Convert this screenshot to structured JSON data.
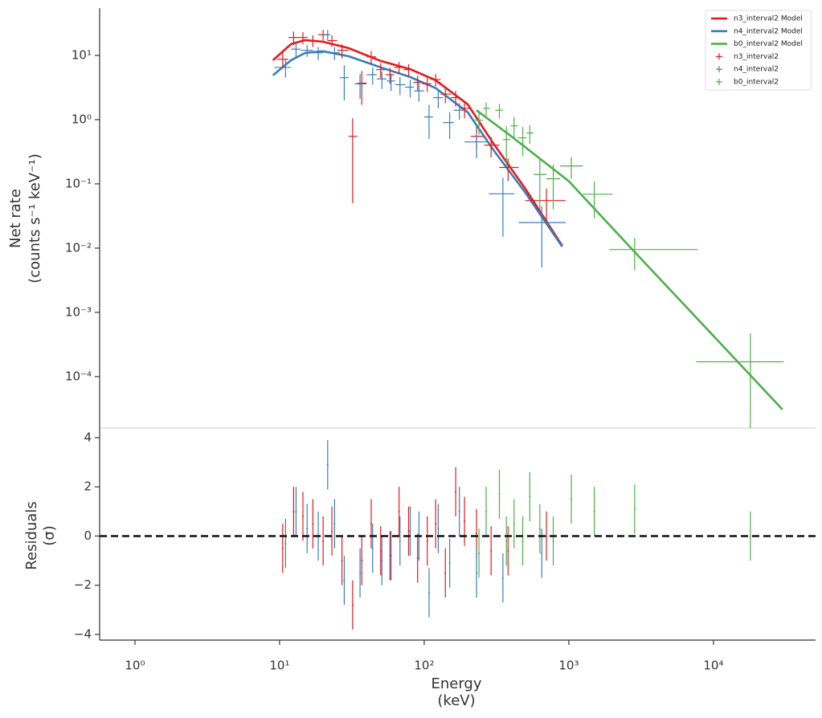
{
  "chart_data": [
    {
      "type": "spectrum",
      "ylabel": [
        "Net rate",
        "(counts s⁻¹ keV⁻¹)"
      ],
      "log_x": true,
      "log_y": true,
      "xlim": [
        0.57,
        50800
      ],
      "ylim": [
        1.58e-05,
        54.6
      ],
      "yticks": [
        {
          "value": 10,
          "label": "10¹"
        },
        {
          "value": 1,
          "label": "10⁰"
        },
        {
          "value": 0.1,
          "label": "10⁻¹"
        },
        {
          "value": 0.01,
          "label": "10⁻²"
        },
        {
          "value": 0.001,
          "label": "10⁻³"
        },
        {
          "value": 0.0001,
          "label": "10⁻⁴"
        }
      ],
      "legend": "upper right",
      "series": [
        {
          "name": "n3_interval2 Model",
          "kind": "model",
          "color": "#e41a1c",
          "x": [
            9,
            12,
            15,
            20,
            30,
            50,
            80,
            120,
            200,
            300,
            500,
            900
          ],
          "values": [
            8.4,
            15.0,
            17.3,
            16.3,
            13.0,
            8.2,
            6.1,
            4.1,
            1.73,
            0.43,
            0.084,
            0.0109
          ]
        },
        {
          "name": "n4_interval2 Model",
          "kind": "model",
          "color": "#377eb8",
          "x": [
            9,
            12,
            15,
            20,
            30,
            50,
            80,
            120,
            200,
            300,
            500,
            900
          ],
          "values": [
            4.9,
            8.4,
            10.9,
            11.6,
            9.7,
            6.5,
            4.6,
            3.1,
            1.3,
            0.34,
            0.073,
            0.0105
          ]
        },
        {
          "name": "b0_interval2 Model",
          "kind": "model",
          "color": "#4daf4a",
          "x": [
            230,
            400,
            1000,
            3000,
            10000,
            30000
          ],
          "values": [
            1.4,
            0.55,
            0.11,
            0.0077,
            0.00043,
            3.07e-05
          ]
        },
        {
          "name": "n3_interval2",
          "kind": "data",
          "color": "#e41a1c",
          "x": [
            10.5,
            12.5,
            14.5,
            17,
            20,
            23,
            27,
            32,
            37,
            43,
            50,
            58,
            67,
            78,
            90,
            105,
            120,
            140,
            165,
            190,
            230,
            290,
            380,
            700
          ],
          "x_lo": [
            9.6,
            11.5,
            13.5,
            15.7,
            18.5,
            21.5,
            25,
            30,
            34.5,
            40,
            46.5,
            54,
            62,
            72,
            84,
            97,
            112,
            130,
            153,
            178,
            210,
            260,
            330,
            500
          ],
          "x_hi": [
            11.5,
            13.5,
            15.7,
            18.5,
            21.5,
            25,
            30,
            34.5,
            40,
            46.5,
            54,
            62,
            72,
            84,
            97,
            112,
            130,
            153,
            178,
            210,
            260,
            330,
            450,
            950
          ],
          "values": [
            8.7,
            19,
            19,
            17,
            21,
            17,
            12,
            0.55,
            3.7,
            9.5,
            6,
            5,
            6.5,
            6,
            3.8,
            3.6,
            4.2,
            2.5,
            2.2,
            1.5,
            0.55,
            0.4,
            0.18,
            0.055
          ],
          "y_err": [
            2.5,
            4.5,
            4,
            3.5,
            4,
            3.5,
            3,
            0.5,
            2,
            2.2,
            1.6,
            1.4,
            1.4,
            1.3,
            1.0,
            0.9,
            0.9,
            0.7,
            0.6,
            0.45,
            0.22,
            0.14,
            0.07,
            0.03
          ]
        },
        {
          "name": "n4_interval2",
          "kind": "data",
          "color": "#377eb8",
          "x": [
            11,
            13,
            15.5,
            18.5,
            21.5,
            24,
            28,
            36,
            44,
            51,
            59,
            68,
            80,
            92,
            108,
            125,
            150,
            175,
            230,
            350,
            650
          ],
          "x_lo": [
            9.2,
            12,
            14,
            17,
            20,
            22.5,
            26,
            33,
            40,
            47,
            55,
            63,
            74,
            85,
            100,
            115,
            135,
            160,
            190,
            280,
            450
          ],
          "x_hi": [
            12,
            14,
            17,
            20,
            22.5,
            26,
            30,
            40,
            47,
            55,
            63,
            74,
            85,
            100,
            115,
            135,
            160,
            190,
            270,
            420,
            950
          ],
          "values": [
            6.5,
            12.5,
            12,
            11,
            21,
            11,
            4.5,
            3.6,
            5,
            4.3,
            4,
            3.5,
            3.2,
            2.8,
            1.1,
            2.2,
            0.9,
            1.4,
            0.45,
            0.07,
            0.025
          ],
          "y_err": [
            2,
            3,
            2.5,
            2.5,
            4,
            2.5,
            2.5,
            1.5,
            1.5,
            1.3,
            1.2,
            1.1,
            1.0,
            0.9,
            0.6,
            0.7,
            0.4,
            0.4,
            0.2,
            0.055,
            0.02
          ]
        },
        {
          "name": "b0_interval2",
          "kind": "data",
          "color": "#4daf4a",
          "x": [
            239,
            268,
            331,
            370,
            418,
            480,
            537,
            630,
            780,
            1040,
            1500,
            2850,
            18000
          ],
          "x_lo": [
            225,
            255,
            310,
            350,
            395,
            445,
            510,
            570,
            700,
            870,
            1250,
            1900,
            7600
          ],
          "x_hi": [
            255,
            285,
            350,
            395,
            445,
            510,
            570,
            700,
            870,
            1250,
            2000,
            7800,
            30600
          ],
          "values": [
            0.98,
            1.5,
            1.4,
            0.49,
            0.8,
            0.52,
            0.62,
            0.14,
            0.12,
            0.19,
            0.069,
            0.0095,
            0.00017
          ],
          "y_err": [
            0.4,
            0.35,
            0.35,
            0.3,
            0.3,
            0.25,
            0.2,
            0.1,
            0.08,
            0.07,
            0.04,
            0.005,
            0.0003
          ]
        }
      ]
    },
    {
      "type": "residuals",
      "xlabel": [
        "Energy",
        "(keV)"
      ],
      "ylabel": [
        "Residuals",
        "(σ)"
      ],
      "log_x": true,
      "xlim": [
        0.57,
        50800
      ],
      "xticks": [
        {
          "value": 1,
          "label": "10⁰"
        },
        {
          "value": 10,
          "label": "10¹"
        },
        {
          "value": 100,
          "label": "10²"
        },
        {
          "value": 1000,
          "label": "10³"
        },
        {
          "value": 10000,
          "label": "10⁴"
        }
      ],
      "ylim": [
        -4.23,
        4.39
      ],
      "yticks": [
        4,
        2,
        0,
        {
          "value": -2,
          "label": "−2"
        },
        {
          "value": -4,
          "label": "−4"
        }
      ],
      "reference_line": 0,
      "series": [
        {
          "color": "#e41a1c",
          "x": [
            10.5,
            12.5,
            14.5,
            17,
            20,
            23,
            27,
            32,
            37,
            43,
            50,
            58,
            67,
            78,
            90,
            105,
            120,
            140,
            165,
            190,
            230,
            290,
            380,
            700
          ],
          "values": [
            -0.5,
            1.0,
            0.8,
            0.5,
            -0.2,
            0.2,
            -1.0,
            -2.8,
            -1.0,
            0.5,
            -0.6,
            -0.8,
            1.0,
            0.2,
            -0.9,
            -0.2,
            0.5,
            -1.5,
            1.8,
            0.6,
            0.1,
            -0.6,
            -0.6,
            0.0
          ],
          "y_err": [
            1,
            1,
            1,
            1,
            1,
            1,
            1,
            1,
            1,
            1,
            1,
            1,
            1,
            1,
            1,
            1,
            1,
            1,
            1,
            1,
            1,
            1,
            1,
            1
          ]
        },
        {
          "color": "#377eb8",
          "x": [
            11,
            13,
            15.5,
            18.5,
            21.5,
            24,
            28,
            36,
            44,
            51,
            59,
            68,
            80,
            92,
            108,
            125,
            150,
            175,
            230,
            350,
            650
          ],
          "values": [
            -0.3,
            1.0,
            0.3,
            0.0,
            2.9,
            0.5,
            -1.8,
            -1.5,
            -0.5,
            -1.0,
            -0.8,
            -0.2,
            0.2,
            0.0,
            -2.3,
            0.3,
            -1.1,
            1.0,
            -1.5,
            -1.7,
            -0.7
          ],
          "y_err": [
            1,
            1,
            1,
            1,
            1,
            1,
            1,
            1,
            1,
            1,
            1,
            1,
            1,
            1,
            1,
            1,
            1,
            1,
            1,
            1,
            1
          ]
        },
        {
          "color": "#4daf4a",
          "x": [
            239,
            268,
            331,
            370,
            418,
            480,
            537,
            630,
            780,
            1040,
            1500,
            2850,
            18000
          ],
          "values": [
            -0.7,
            1.0,
            1.7,
            -0.2,
            0.5,
            -0.2,
            1.6,
            0.3,
            -0.2,
            1.5,
            1.0,
            1.1,
            0.0
          ],
          "y_err": [
            1,
            1,
            1,
            1,
            1,
            1,
            1,
            1,
            1,
            1,
            1,
            1,
            1
          ]
        }
      ]
    }
  ]
}
